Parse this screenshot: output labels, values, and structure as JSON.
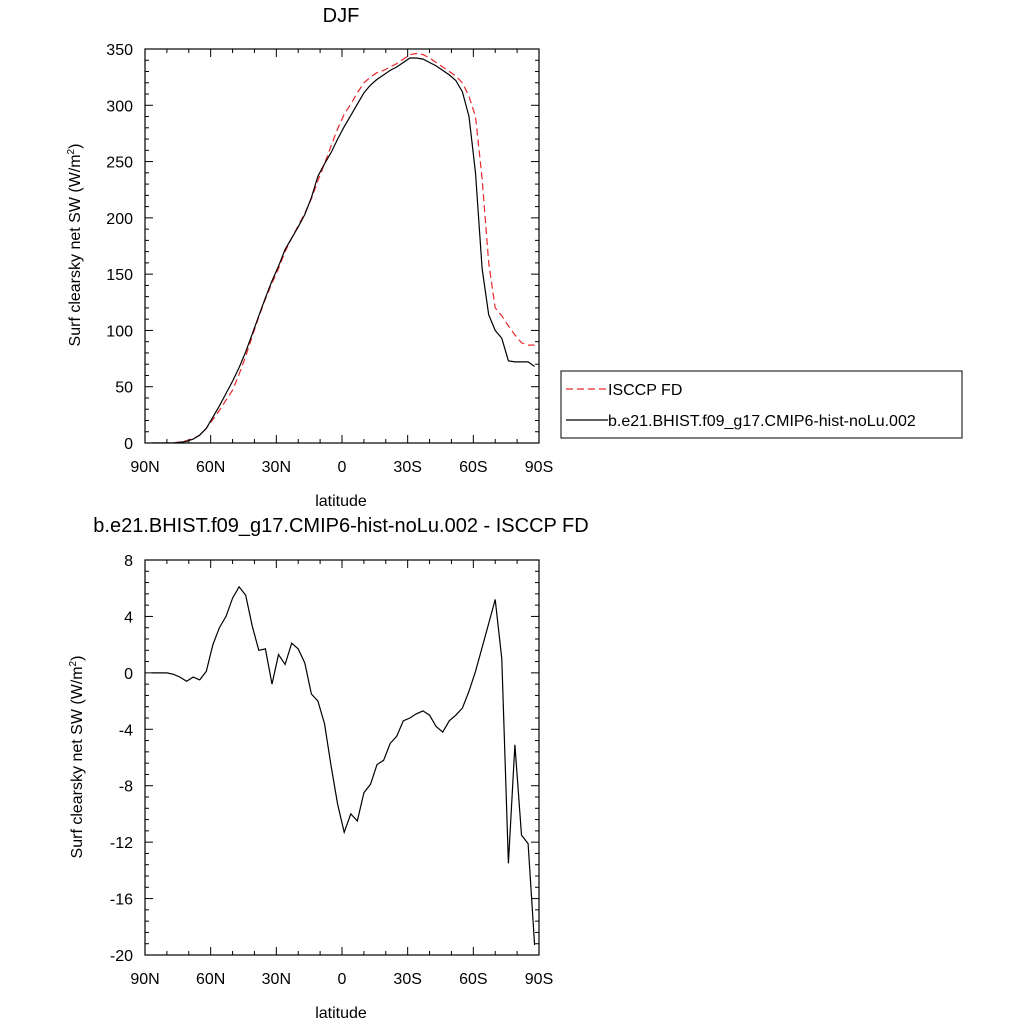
{
  "chart_data": [
    {
      "type": "line",
      "title": "DJF",
      "xlabel": "latitude",
      "ylabel": "Surf clearsky net SW (W/m",
      "ylabel_sup": "2",
      "ylabel_close": ")",
      "xlim": [
        90,
        -90
      ],
      "ylim": [
        0,
        350
      ],
      "xticks": [
        90,
        60,
        30,
        0,
        -30,
        -60,
        -90
      ],
      "xtick_labels": [
        "90N",
        "60N",
        "30N",
        "0",
        "30S",
        "60S",
        "90S"
      ],
      "yticks": [
        0,
        50,
        100,
        150,
        200,
        250,
        300,
        350
      ],
      "ytick_labels": [
        "0",
        "50",
        "100",
        "150",
        "200",
        "250",
        "300",
        "350"
      ],
      "series": [
        {
          "name": "ISCCP FD",
          "color": "#e8262b",
          "dash": "dashed",
          "x": [
            87,
            83,
            80,
            77,
            74,
            71,
            68,
            65,
            62,
            59,
            56,
            53,
            50,
            47,
            44,
            41,
            38,
            35,
            32,
            29,
            26,
            23,
            20,
            17,
            14,
            11,
            8,
            5,
            2,
            -1,
            -4,
            -7,
            -10,
            -13,
            -16,
            -19,
            -22,
            -25,
            -28,
            -31,
            -34,
            -37,
            -40,
            -43,
            -46,
            -49,
            -52,
            -55,
            -58,
            -61,
            -64,
            -67,
            -70,
            -73,
            -76,
            -79,
            -82,
            -85,
            -88
          ],
          "y": [
            0,
            0,
            0,
            0,
            1,
            2,
            4,
            7,
            13,
            21,
            29,
            38,
            47,
            61,
            77,
            95,
            112,
            128,
            142,
            155,
            170,
            182,
            193,
            204,
            217,
            233,
            248,
            264,
            279,
            292,
            301,
            311,
            320,
            325,
            329,
            331,
            334,
            337,
            341,
            345,
            346,
            345,
            342,
            338,
            334,
            330,
            326,
            320,
            308,
            290,
            235,
            160,
            120,
            113,
            104,
            96,
            89,
            87,
            87
          ]
        },
        {
          "name": "b.e21.BHIST.f09_g17.CMIP6-hist-noLu.002",
          "color": "#000000",
          "dash": "solid",
          "x": [
            87,
            83,
            80,
            77,
            74,
            71,
            68,
            65,
            62,
            59,
            56,
            53,
            50,
            47,
            44,
            41,
            38,
            35,
            32,
            29,
            26,
            23,
            20,
            17,
            14,
            11,
            8,
            5,
            2,
            -1,
            -4,
            -7,
            -10,
            -13,
            -16,
            -19,
            -22,
            -25,
            -28,
            -31,
            -34,
            -37,
            -40,
            -43,
            -46,
            -49,
            -52,
            -55,
            -58,
            -61,
            -64,
            -67,
            -70,
            -73,
            -76,
            -79,
            -82,
            -85,
            -88
          ],
          "y": [
            0,
            0,
            0,
            0,
            0.5,
            1.5,
            3.5,
            7,
            13,
            23,
            33,
            44,
            55,
            67,
            81,
            97,
            113,
            129,
            144,
            157,
            172,
            182,
            192,
            203,
            218,
            237,
            248,
            258,
            270,
            281,
            291,
            301,
            311,
            318,
            323,
            327,
            331,
            334,
            338,
            342,
            342,
            341,
            338,
            335,
            331,
            327,
            322,
            312,
            290,
            240,
            155,
            114,
            100,
            93,
            73,
            72,
            72,
            72,
            68
          ]
        }
      ],
      "legend": {
        "position": "right",
        "entries": [
          {
            "label": "ISCCP FD",
            "color": "#e8262b",
            "dash": "dashed"
          },
          {
            "label": "b.e21.BHIST.f09_g17.CMIP6-hist-noLu.002",
            "color": "#000000",
            "dash": "solid"
          }
        ]
      },
      "grid": false
    },
    {
      "type": "line",
      "title": "b.e21.BHIST.f09_g17.CMIP6-hist-noLu.002 - ISCCP FD",
      "xlabel": "latitude",
      "ylabel": "Surf clearsky net SW (W/m",
      "ylabel_sup": "2",
      "ylabel_close": ")",
      "xlim": [
        90,
        -90
      ],
      "ylim": [
        -20,
        8
      ],
      "xticks": [
        90,
        60,
        30,
        0,
        -30,
        -60,
        -90
      ],
      "xtick_labels": [
        "90N",
        "60N",
        "30N",
        "0",
        "30S",
        "60S",
        "90S"
      ],
      "yticks": [
        -20,
        -16,
        -12,
        -8,
        -4,
        0,
        4,
        8
      ],
      "ytick_labels": [
        "-20",
        "-16",
        "-12",
        "-8",
        "-4",
        "0",
        "4",
        "8"
      ],
      "series": [
        {
          "color": "#000000",
          "dash": "solid",
          "x": [
            87,
            83,
            80,
            77,
            74,
            71,
            68,
            65,
            62,
            59,
            56,
            53,
            50,
            47,
            44,
            41,
            38,
            35,
            32,
            29,
            26,
            23,
            20,
            17,
            14,
            11,
            8,
            5,
            2,
            -1,
            -4,
            -7,
            -10,
            -13,
            -16,
            -19,
            -22,
            -25,
            -28,
            -31,
            -34,
            -37,
            -40,
            -43,
            -46,
            -49,
            -52,
            -55,
            -58,
            -61,
            -64,
            -67,
            -70,
            -73,
            -76,
            -79,
            -82,
            -85,
            -88
          ],
          "y": [
            0,
            0,
            0,
            -0.1,
            -0.3,
            -0.6,
            -0.3,
            -0.5,
            0.1,
            2.0,
            3.2,
            4.0,
            5.3,
            6.1,
            5.5,
            3.3,
            1.6,
            1.7,
            -0.8,
            1.3,
            0.6,
            2.1,
            1.7,
            0.7,
            -1.5,
            -2.0,
            -3.6,
            -6.6,
            -9.3,
            -11.3,
            -10.0,
            -10.5,
            -8.5,
            -7.9,
            -6.5,
            -6.2,
            -5.0,
            -4.5,
            -3.4,
            -3.2,
            -2.9,
            -2.7,
            -3.0,
            -3.8,
            -4.2,
            -3.4,
            -3.0,
            -2.5,
            -1.3,
            0.1,
            1.8,
            3.5,
            5.2,
            1.0,
            -13.5,
            -5.1,
            -11.5,
            -12.1,
            -19.3
          ]
        }
      ],
      "grid": false
    }
  ]
}
